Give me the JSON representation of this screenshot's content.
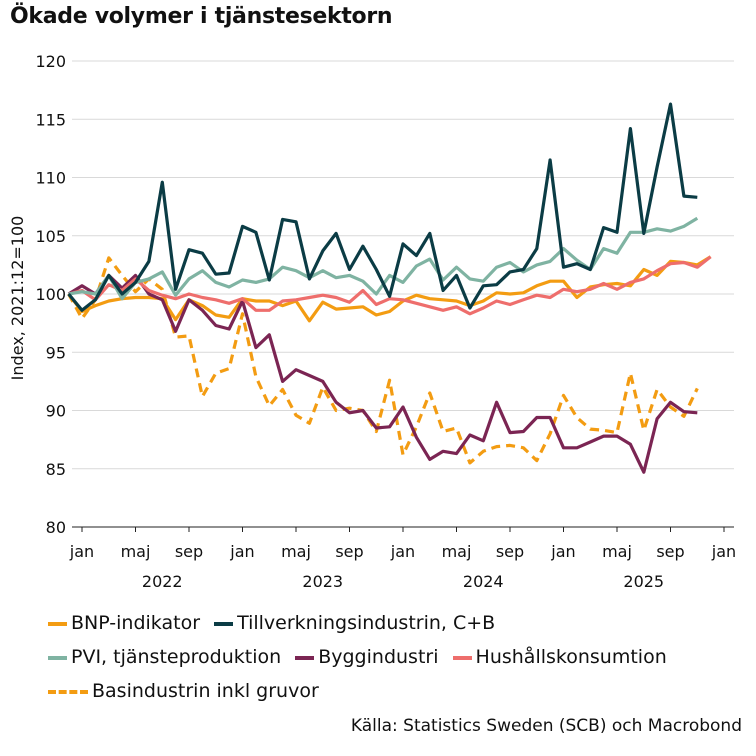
{
  "title": "Ökade volymer i tjänstesektorn",
  "source": "Källa: Statistics Sweden (SCB) och Macrobond",
  "chart_data": {
    "type": "line",
    "ylabel": "Index, 2021:12=100",
    "ylim": [
      80,
      120
    ],
    "yticks": [
      80,
      85,
      90,
      95,
      100,
      105,
      110,
      115,
      120
    ],
    "xlim": [
      0,
      48
    ],
    "xticks": [
      {
        "pos": 0,
        "label": "jan"
      },
      {
        "pos": 4,
        "label": "maj"
      },
      {
        "pos": 8,
        "label": "sep"
      },
      {
        "pos": 12,
        "label": "jan"
      },
      {
        "pos": 16,
        "label": "maj"
      },
      {
        "pos": 20,
        "label": "sep"
      },
      {
        "pos": 24,
        "label": "jan"
      },
      {
        "pos": 28,
        "label": "maj"
      },
      {
        "pos": 32,
        "label": "sep"
      },
      {
        "pos": 36,
        "label": "jan"
      },
      {
        "pos": 40,
        "label": "maj"
      },
      {
        "pos": 44,
        "label": "sep"
      },
      {
        "pos": 48,
        "label": "jan"
      }
    ],
    "year_labels": [
      {
        "pos": 6,
        "label": "2022"
      },
      {
        "pos": 18,
        "label": "2023"
      },
      {
        "pos": 30,
        "label": "2024"
      },
      {
        "pos": 42,
        "label": "2025"
      }
    ],
    "x_start": -1,
    "series": [
      {
        "name": "BNP-indikator",
        "color": "#f39c12",
        "dashed": false,
        "values": [
          100.0,
          98.5,
          99.0,
          99.4,
          99.6,
          99.7,
          99.7,
          99.6,
          97.8,
          99.5,
          99.0,
          98.2,
          98.0,
          99.6,
          99.4,
          99.4,
          99.0,
          99.4,
          97.7,
          99.3,
          98.7,
          98.8,
          98.9,
          98.2,
          98.5,
          99.4,
          99.9,
          99.6,
          99.5,
          99.4,
          99.0,
          99.4,
          100.1,
          100.0,
          100.1,
          100.7,
          101.1,
          101.1,
          99.7,
          100.6,
          100.8,
          100.9,
          100.7,
          102.1,
          101.6,
          102.8,
          102.7,
          102.5,
          103.2
        ]
      },
      {
        "name": "Tillverkningsindustrin, C+B",
        "color": "#0b3c45",
        "dashed": false,
        "values": [
          100.0,
          98.6,
          99.5,
          101.6,
          100.0,
          101.0,
          102.8,
          109.6,
          100.4,
          103.8,
          103.5,
          101.7,
          101.8,
          105.8,
          105.3,
          101.2,
          106.4,
          106.2,
          101.3,
          103.7,
          105.2,
          102.1,
          104.1,
          102.1,
          99.8,
          104.3,
          103.3,
          105.2,
          100.3,
          101.6,
          98.8,
          100.7,
          100.8,
          101.9,
          102.1,
          103.9,
          111.5,
          102.3,
          102.6,
          102.1,
          105.7,
          105.3,
          114.2,
          105.2,
          110.9,
          116.3,
          108.4,
          108.3,
          null
        ]
      },
      {
        "name": "PVI, tjänsteproduktion",
        "color": "#7fb3a2",
        "dashed": false,
        "values": [
          100.0,
          100.2,
          100.0,
          101.6,
          99.6,
          101.0,
          101.3,
          101.9,
          99.9,
          101.3,
          102.0,
          101.0,
          100.6,
          101.2,
          101.0,
          101.3,
          102.3,
          102.0,
          101.4,
          102.0,
          101.4,
          101.6,
          101.1,
          100.0,
          101.6,
          101.0,
          102.4,
          103.0,
          101.2,
          102.3,
          101.3,
          101.1,
          102.3,
          102.7,
          101.9,
          102.5,
          102.8,
          103.9,
          102.9,
          102.1,
          103.9,
          103.5,
          105.3,
          105.3,
          105.6,
          105.4,
          105.8,
          106.5,
          null
        ]
      },
      {
        "name": "Byggindustri",
        "color": "#7b2553",
        "dashed": false,
        "values": [
          100.0,
          100.7,
          100.0,
          101.6,
          100.5,
          101.6,
          100.0,
          99.5,
          96.8,
          99.5,
          98.6,
          97.3,
          97.0,
          99.4,
          95.4,
          96.5,
          92.5,
          93.5,
          93.0,
          92.5,
          90.7,
          89.8,
          90.0,
          88.5,
          88.6,
          90.3,
          87.7,
          85.8,
          86.5,
          86.3,
          87.9,
          87.4,
          90.7,
          88.1,
          88.2,
          89.4,
          89.4,
          86.8,
          86.8,
          87.3,
          87.8,
          87.8,
          87.1,
          84.7,
          89.3,
          90.7,
          89.9,
          89.8,
          null
        ]
      },
      {
        "name": "Hushållskonsumtion",
        "color": "#ee6e6c",
        "dashed": false,
        "values": [
          100.0,
          100.3,
          99.5,
          100.8,
          100.3,
          101.3,
          100.3,
          99.9,
          99.6,
          100.0,
          99.7,
          99.5,
          99.2,
          99.6,
          98.6,
          98.6,
          99.4,
          99.5,
          99.7,
          99.9,
          99.7,
          99.3,
          100.3,
          99.1,
          99.6,
          99.5,
          99.2,
          98.9,
          98.6,
          98.9,
          98.3,
          98.8,
          99.4,
          99.1,
          99.5,
          99.9,
          99.7,
          100.4,
          100.2,
          100.4,
          100.9,
          100.4,
          101.0,
          101.3,
          102.0,
          102.6,
          102.7,
          102.3,
          103.2
        ]
      },
      {
        "name": "Basindustrin inkl gruvor",
        "color": "#f39c12",
        "dashed": true,
        "values": [
          100.0,
          97.9,
          99.5,
          103.1,
          101.6,
          100.2,
          101.3,
          100.4,
          96.3,
          96.4,
          91.2,
          93.2,
          93.6,
          98.3,
          92.9,
          90.4,
          91.8,
          89.6,
          88.9,
          92.0,
          90.0,
          90.2,
          90.0,
          88.2,
          92.6,
          86.2,
          88.6,
          91.5,
          88.2,
          88.5,
          85.5,
          86.5,
          86.9,
          87.0,
          86.8,
          85.7,
          88.0,
          91.3,
          89.4,
          88.4,
          88.3,
          88.1,
          93.2,
          88.3,
          91.8,
          90.3,
          89.5,
          91.9,
          null
        ]
      }
    ]
  }
}
